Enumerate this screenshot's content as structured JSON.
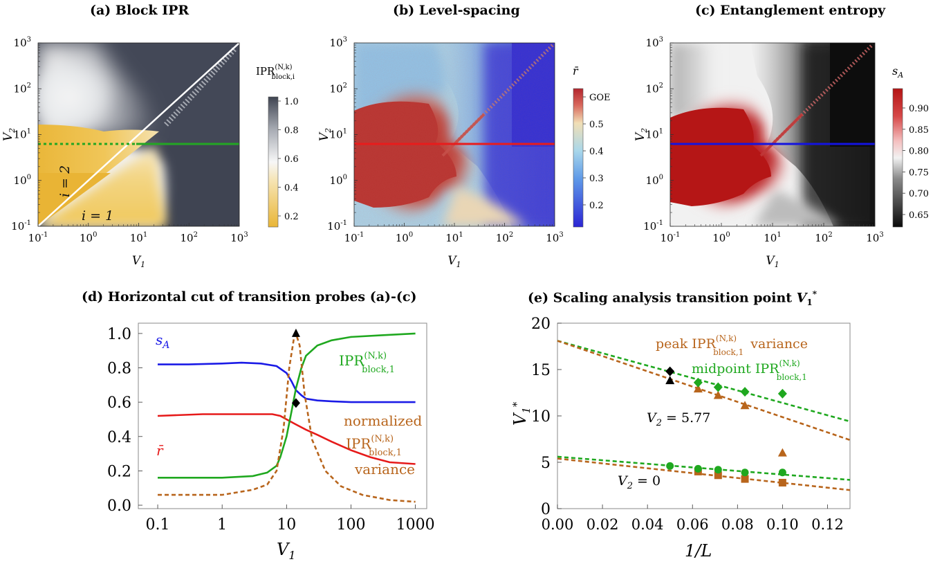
{
  "panel_titles": {
    "a": "(a) Block IPR",
    "b": "(b) Level-spacing",
    "c": "(c) Entanglement entropy",
    "d": "(d) Horizontal cut of transition probes (a)-(c)",
    "e_prefix": "(e) Scaling analysis transition point "
  },
  "heatmap_axes": {
    "xlabel": "V1",
    "ylabel": "V2",
    "ticks": [
      "-1",
      "0",
      "1",
      "2",
      "3"
    ]
  },
  "colorbars": {
    "a": {
      "label": "IPR",
      "label_super": "(N,k)",
      "label_sub": "block,i",
      "ticks": [
        "1.0",
        "0.8",
        "0.6",
        "0.4",
        "0.2"
      ]
    },
    "b": {
      "label": "r̄",
      "ticks": [
        "GOE",
        "0.5",
        "0.4",
        "0.3",
        "0.2"
      ]
    },
    "c": {
      "label": "s",
      "label_sub": "A",
      "ticks": [
        "0.90",
        "0.85",
        "0.80",
        "0.75",
        "0.70",
        "0.65"
      ]
    }
  },
  "annotations_a": {
    "i2": "i = 2",
    "i1": "i = 1"
  },
  "chart_data": [
    {
      "type": "heatmap",
      "title": "(a) Block IPR",
      "xlabel": "V1",
      "ylabel": "V2",
      "xlim": [
        0.1,
        1000
      ],
      "ylim": [
        0.1,
        1000
      ],
      "xscale": "log",
      "yscale": "log",
      "colorbar_label": "IPR_block,i^(N,k)",
      "colorbar_range": [
        0.05,
        1.0
      ],
      "cut_line_V2": 5.77
    },
    {
      "type": "heatmap",
      "title": "(b) Level-spacing",
      "xlabel": "V1",
      "ylabel": "V2",
      "xlim": [
        0.1,
        1000
      ],
      "ylim": [
        0.1,
        1000
      ],
      "xscale": "log",
      "yscale": "log",
      "colorbar_label": "r̄",
      "colorbar_range": [
        0.15,
        0.53
      ],
      "cut_line_V2": 5.77
    },
    {
      "type": "heatmap",
      "title": "(c) Entanglement entropy",
      "xlabel": "V1",
      "ylabel": "V2",
      "xlim": [
        0.1,
        1000
      ],
      "ylim": [
        0.1,
        1000
      ],
      "xscale": "log",
      "yscale": "log",
      "colorbar_label": "s_A",
      "colorbar_range": [
        0.62,
        0.94
      ],
      "cut_line_V2": 5.77
    },
    {
      "type": "line",
      "title": "(d) Horizontal cut of transition probes (a)-(c)",
      "xlabel": "V1",
      "xscale": "log",
      "xlim": [
        0.05,
        1500
      ],
      "ylim": [
        -0.02,
        1.06
      ],
      "xticks": [
        "0.1",
        "1",
        "10",
        "100",
        "1000"
      ],
      "yticks": [
        "0.0",
        "0.2",
        "0.4",
        "0.6",
        "0.8",
        "1.0"
      ],
      "series": [
        {
          "name": "s_A",
          "color": "#1a1ae6",
          "style": "solid",
          "x": [
            0.1,
            0.3,
            1,
            2,
            4,
            7,
            10,
            12,
            14,
            17,
            20,
            30,
            50,
            100,
            300,
            1000
          ],
          "y": [
            0.82,
            0.82,
            0.825,
            0.83,
            0.825,
            0.81,
            0.77,
            0.72,
            0.67,
            0.64,
            0.62,
            0.61,
            0.605,
            0.6,
            0.6,
            0.6
          ]
        },
        {
          "name": "r̄",
          "color": "#e61a1a",
          "style": "solid",
          "x": [
            0.1,
            0.5,
            1,
            3,
            6,
            8,
            10,
            14,
            20,
            30,
            50,
            100,
            200,
            400,
            1000
          ],
          "y": [
            0.52,
            0.53,
            0.53,
            0.53,
            0.53,
            0.52,
            0.5,
            0.47,
            0.44,
            0.41,
            0.37,
            0.32,
            0.28,
            0.25,
            0.24
          ]
        },
        {
          "name": "IPR_block,1",
          "color": "#1fa81f",
          "style": "solid",
          "x": [
            0.1,
            1,
            3,
            5,
            7,
            8,
            10,
            12,
            14,
            17,
            20,
            30,
            50,
            100,
            300,
            1000
          ],
          "y": [
            0.16,
            0.16,
            0.17,
            0.19,
            0.23,
            0.28,
            0.4,
            0.55,
            0.68,
            0.8,
            0.87,
            0.93,
            0.96,
            0.98,
            0.99,
            1.0
          ]
        },
        {
          "name": "normalized IPR_block,1 variance",
          "color": "#b8651c",
          "style": "dashed",
          "x": [
            0.1,
            0.3,
            1,
            3,
            5,
            7,
            9,
            11,
            13,
            14,
            16,
            19,
            25,
            40,
            70,
            150,
            400,
            1000
          ],
          "y": [
            0.06,
            0.06,
            0.06,
            0.09,
            0.12,
            0.2,
            0.45,
            0.8,
            0.97,
            1.0,
            0.93,
            0.65,
            0.38,
            0.2,
            0.11,
            0.06,
            0.03,
            0.02
          ]
        }
      ],
      "markers": [
        {
          "shape": "triangle",
          "x": 14,
          "y": 1.0
        },
        {
          "shape": "diamond",
          "x": 14,
          "y": 0.595
        }
      ],
      "labels": {
        "sA": "s",
        "sA_sub": "A",
        "rbar": "r̄",
        "ipr": "IPR",
        "ipr_super": "(N,k)",
        "ipr_sub": "block,1",
        "norm1": "normalized",
        "norm2": "IPR",
        "norm3": "variance"
      }
    },
    {
      "type": "scatter",
      "title": "(e) Scaling analysis transition point V1*",
      "xlabel": "1/L",
      "ylabel": "V1*",
      "xlim": [
        0.0,
        0.13
      ],
      "ylim": [
        0,
        20
      ],
      "xticks": [
        "0.00",
        "0.02",
        "0.04",
        "0.06",
        "0.08",
        "0.10",
        "0.12"
      ],
      "yticks": [
        "0",
        "5",
        "10",
        "15",
        "20"
      ],
      "series": [
        {
          "name": "peak IPR variance (V2 = 5.77)",
          "color": "#b8651c",
          "marker": "triangle",
          "x": [
            0.0625,
            0.0714,
            0.0833,
            0.1
          ],
          "y": [
            12.9,
            12.2,
            11.1,
            6.0
          ]
        },
        {
          "name": "midpoint IPR (V2 = 5.77)",
          "color": "#1fa81f",
          "marker": "diamond",
          "x": [
            0.0625,
            0.0714,
            0.0833,
            0.1
          ],
          "y": [
            13.6,
            13.1,
            12.6,
            12.4
          ]
        },
        {
          "name": "peak IPR variance (V2 = 0)",
          "color": "#b8651c",
          "marker": "square",
          "x": [
            0.0625,
            0.0714,
            0.0833,
            0.1
          ],
          "y": [
            4.0,
            3.6,
            3.2,
            2.8
          ]
        },
        {
          "name": "midpoint IPR (V2 = 0)",
          "color": "#1fa81f",
          "marker": "circle",
          "x": [
            0.05,
            0.0625,
            0.0714,
            0.0833,
            0.1
          ],
          "y": [
            4.6,
            4.3,
            4.2,
            3.9,
            3.9
          ]
        }
      ],
      "black_points": [
        {
          "marker": "diamond",
          "x": 0.05,
          "y": 14.8
        },
        {
          "marker": "triangle",
          "x": 0.05,
          "y": 13.8
        }
      ],
      "fits": [
        {
          "color": "#1fa81f",
          "x": [
            0,
            0.13
          ],
          "y": [
            18.1,
            9.4
          ]
        },
        {
          "color": "#b8651c",
          "x": [
            0,
            0.13
          ],
          "y": [
            18.1,
            7.4
          ]
        },
        {
          "color": "#1fa81f",
          "x": [
            0,
            0.13
          ],
          "y": [
            5.6,
            3.1
          ]
        },
        {
          "color": "#b8651c",
          "x": [
            0,
            0.13
          ],
          "y": [
            5.4,
            2.0
          ]
        }
      ],
      "labels": {
        "peak1": "peak IPR",
        "peak_super": "(N,k)",
        "peak_sub": "block,1",
        "peak2": "variance",
        "mid1": "midpoint IPR",
        "v2a": "V2 = 5.77",
        "v2b": "V2 = 0"
      }
    }
  ]
}
